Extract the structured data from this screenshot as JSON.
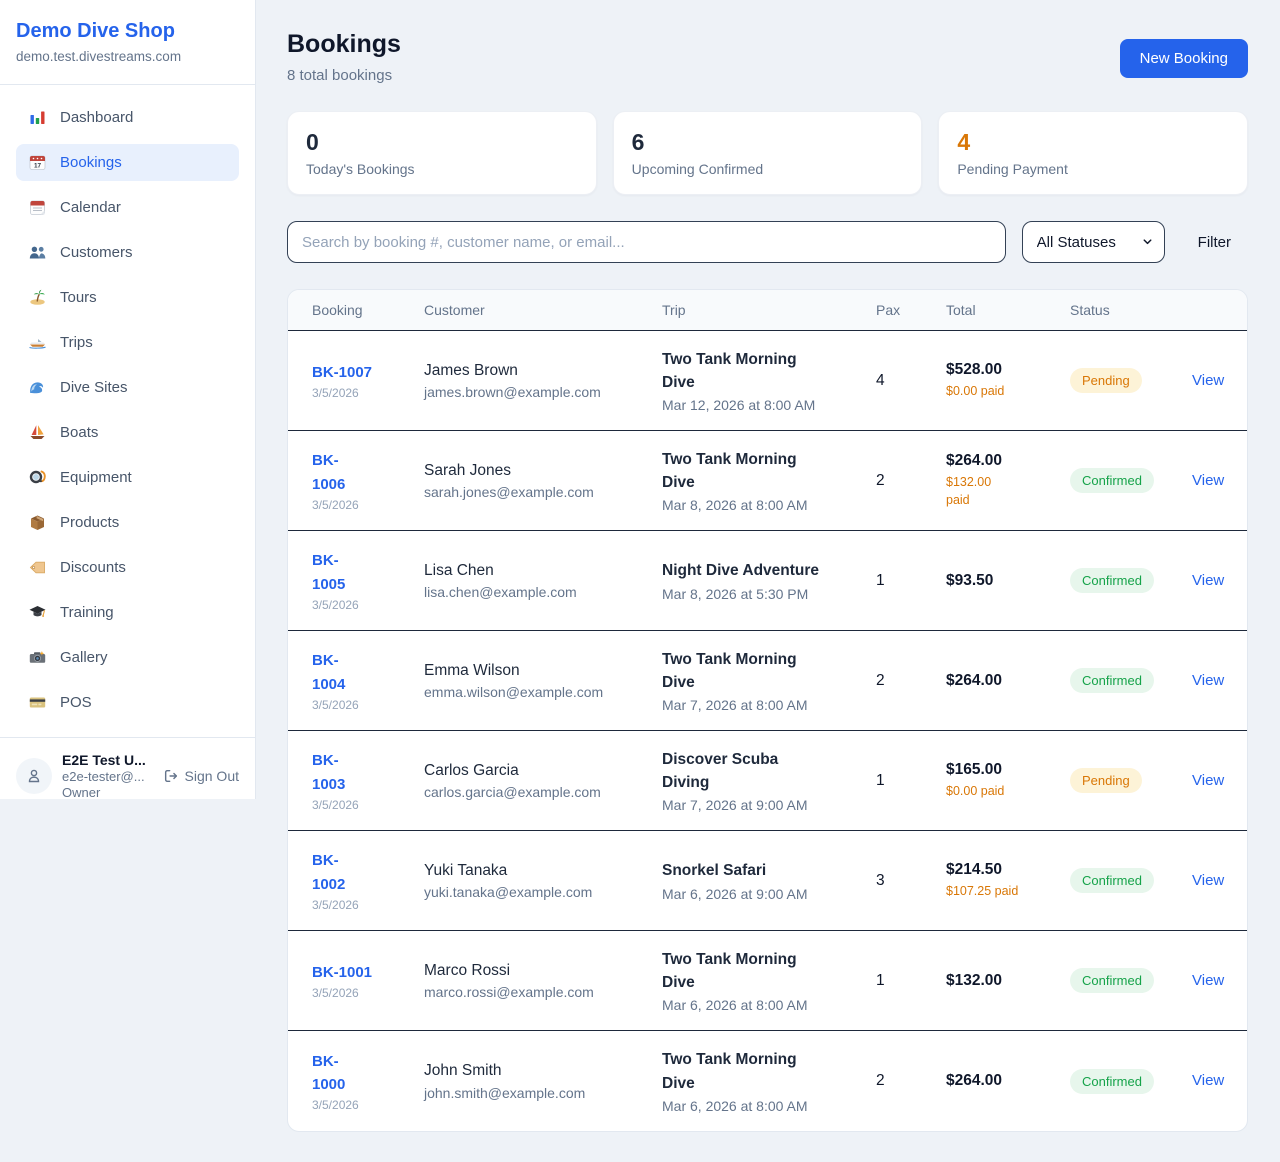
{
  "sidebar": {
    "shop_name": "Demo Dive Shop",
    "shop_domain": "demo.test.divestreams.com",
    "items": [
      {
        "label": "Dashboard",
        "icon": "bar-chart-icon",
        "active": false
      },
      {
        "label": "Bookings",
        "icon": "calendar-date-icon",
        "active": true
      },
      {
        "label": "Calendar",
        "icon": "calendar-icon",
        "active": false
      },
      {
        "label": "Customers",
        "icon": "people-icon",
        "active": false
      },
      {
        "label": "Tours",
        "icon": "island-icon",
        "active": false
      },
      {
        "label": "Trips",
        "icon": "speedboat-icon",
        "active": false
      },
      {
        "label": "Dive Sites",
        "icon": "wave-icon",
        "active": false
      },
      {
        "label": "Boats",
        "icon": "sailboat-icon",
        "active": false
      },
      {
        "label": "Equipment",
        "icon": "diving-mask-icon",
        "active": false
      },
      {
        "label": "Products",
        "icon": "package-icon",
        "active": false
      },
      {
        "label": "Discounts",
        "icon": "tag-icon",
        "active": false
      },
      {
        "label": "Training",
        "icon": "graduation-cap-icon",
        "active": false
      },
      {
        "label": "Gallery",
        "icon": "camera-icon",
        "active": false
      },
      {
        "label": "POS",
        "icon": "credit-card-icon",
        "active": false
      }
    ],
    "user": {
      "name": "E2E Test U...",
      "email": "e2e-tester@...",
      "role": "Owner",
      "sign_out_label": "Sign Out"
    }
  },
  "header": {
    "title": "Bookings",
    "subtitle": "8 total bookings",
    "new_booking_label": "New Booking"
  },
  "stats": [
    {
      "value": "0",
      "label": "Today's Bookings",
      "highlight": false
    },
    {
      "value": "6",
      "label": "Upcoming Confirmed",
      "highlight": false
    },
    {
      "value": "4",
      "label": "Pending Payment",
      "highlight": true
    }
  ],
  "filters": {
    "search_placeholder": "Search by booking #, customer name, or email...",
    "status_selected": "All Statuses",
    "filter_label": "Filter"
  },
  "table": {
    "columns": [
      "Booking",
      "Customer",
      "Trip",
      "Pax",
      "Total",
      "Status"
    ],
    "view_label": "View",
    "rows": [
      {
        "id_lines": [
          "BK-1007"
        ],
        "date": "3/5/2026",
        "customer": "James Brown",
        "email": "james.brown@example.com",
        "trip_lines": [
          "Two Tank Morning",
          "Dive"
        ],
        "trip_datetime": "Mar 12, 2026 at 8:00 AM",
        "pax": "4",
        "total": "$528.00",
        "paid_lines": [
          "$0.00 paid"
        ],
        "status": "Pending"
      },
      {
        "id_lines": [
          "BK-",
          "1006"
        ],
        "date": "3/5/2026",
        "customer": "Sarah Jones",
        "email": "sarah.jones@example.com",
        "trip_lines": [
          "Two Tank Morning",
          "Dive"
        ],
        "trip_datetime": "Mar 8, 2026 at 8:00 AM",
        "pax": "2",
        "total": "$264.00",
        "paid_lines": [
          "$132.00",
          "paid"
        ],
        "status": "Confirmed"
      },
      {
        "id_lines": [
          "BK-",
          "1005"
        ],
        "date": "3/5/2026",
        "customer": "Lisa Chen",
        "email": "lisa.chen@example.com",
        "trip_lines": [
          "Night Dive Adventure"
        ],
        "trip_datetime": "Mar 8, 2026 at 5:30 PM",
        "pax": "1",
        "total": "$93.50",
        "paid_lines": null,
        "status": "Confirmed"
      },
      {
        "id_lines": [
          "BK-",
          "1004"
        ],
        "date": "3/5/2026",
        "customer": "Emma Wilson",
        "email": "emma.wilson@example.com",
        "trip_lines": [
          "Two Tank Morning",
          "Dive"
        ],
        "trip_datetime": "Mar 7, 2026 at 8:00 AM",
        "pax": "2",
        "total": "$264.00",
        "paid_lines": null,
        "status": "Confirmed"
      },
      {
        "id_lines": [
          "BK-",
          "1003"
        ],
        "date": "3/5/2026",
        "customer": "Carlos Garcia",
        "email": "carlos.garcia@example.com",
        "trip_lines": [
          "Discover Scuba",
          "Diving"
        ],
        "trip_datetime": "Mar 7, 2026 at 9:00 AM",
        "pax": "1",
        "total": "$165.00",
        "paid_lines": [
          "$0.00 paid"
        ],
        "status": "Pending"
      },
      {
        "id_lines": [
          "BK-",
          "1002"
        ],
        "date": "3/5/2026",
        "customer": "Yuki Tanaka",
        "email": "yuki.tanaka@example.com",
        "trip_lines": [
          "Snorkel Safari"
        ],
        "trip_datetime": "Mar 6, 2026 at 9:00 AM",
        "pax": "3",
        "total": "$214.50",
        "paid_lines": [
          "$107.25 paid"
        ],
        "status": "Confirmed"
      },
      {
        "id_lines": [
          "BK-1001"
        ],
        "date": "3/5/2026",
        "customer": "Marco Rossi",
        "email": "marco.rossi@example.com",
        "trip_lines": [
          "Two Tank Morning",
          "Dive"
        ],
        "trip_datetime": "Mar 6, 2026 at 8:00 AM",
        "pax": "1",
        "total": "$132.00",
        "paid_lines": null,
        "status": "Confirmed"
      },
      {
        "id_lines": [
          "BK-",
          "1000"
        ],
        "date": "3/5/2026",
        "customer": "John Smith",
        "email": "john.smith@example.com",
        "trip_lines": [
          "Two Tank Morning",
          "Dive"
        ],
        "trip_datetime": "Mar 6, 2026 at 8:00 AM",
        "pax": "2",
        "total": "$264.00",
        "paid_lines": null,
        "status": "Confirmed"
      }
    ]
  },
  "colors": {
    "accent_blue": "#2563eb",
    "pending_text": "#d97706",
    "pending_bg": "#fdf3d7",
    "confirmed_text": "#16a34a",
    "confirmed_bg": "#e7f6ec",
    "paid_amount": "#d97706",
    "page_bg": "#eef2f7",
    "row_divider": "#1e293b"
  }
}
